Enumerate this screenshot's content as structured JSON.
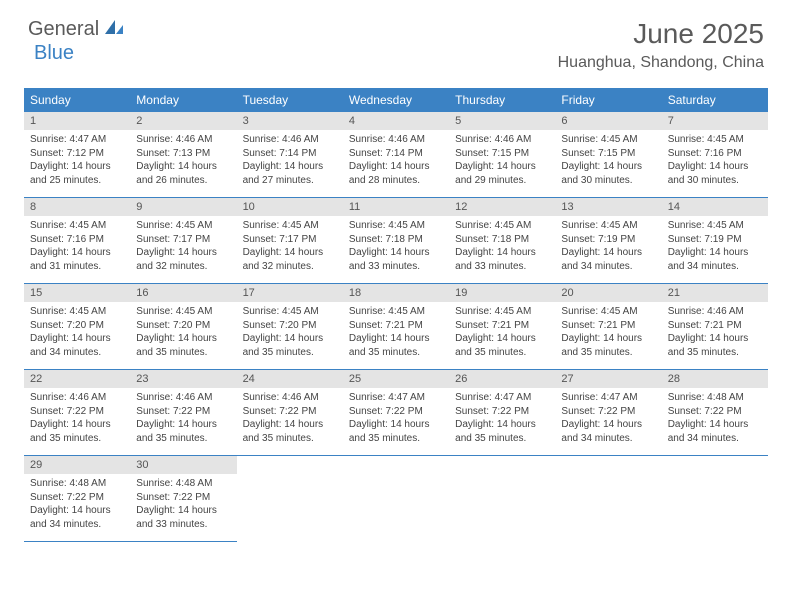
{
  "logo": {
    "text1": "General",
    "text2": "Blue"
  },
  "title": "June 2025",
  "location": "Huanghua, Shandong, China",
  "colors": {
    "brand_blue": "#3b82c4",
    "header_text": "#5a5a5a",
    "daynum_bg": "#e4e4e4",
    "body_text": "#444444",
    "background": "#ffffff"
  },
  "layout": {
    "columns": 7,
    "rows": 5,
    "start_weekday": "Sunday"
  },
  "weekdays": [
    "Sunday",
    "Monday",
    "Tuesday",
    "Wednesday",
    "Thursday",
    "Friday",
    "Saturday"
  ],
  "days": [
    {
      "n": 1,
      "sunrise": "4:47 AM",
      "sunset": "7:12 PM",
      "daylight": "14 hours and 25 minutes."
    },
    {
      "n": 2,
      "sunrise": "4:46 AM",
      "sunset": "7:13 PM",
      "daylight": "14 hours and 26 minutes."
    },
    {
      "n": 3,
      "sunrise": "4:46 AM",
      "sunset": "7:14 PM",
      "daylight": "14 hours and 27 minutes."
    },
    {
      "n": 4,
      "sunrise": "4:46 AM",
      "sunset": "7:14 PM",
      "daylight": "14 hours and 28 minutes."
    },
    {
      "n": 5,
      "sunrise": "4:46 AM",
      "sunset": "7:15 PM",
      "daylight": "14 hours and 29 minutes."
    },
    {
      "n": 6,
      "sunrise": "4:45 AM",
      "sunset": "7:15 PM",
      "daylight": "14 hours and 30 minutes."
    },
    {
      "n": 7,
      "sunrise": "4:45 AM",
      "sunset": "7:16 PM",
      "daylight": "14 hours and 30 minutes."
    },
    {
      "n": 8,
      "sunrise": "4:45 AM",
      "sunset": "7:16 PM",
      "daylight": "14 hours and 31 minutes."
    },
    {
      "n": 9,
      "sunrise": "4:45 AM",
      "sunset": "7:17 PM",
      "daylight": "14 hours and 32 minutes."
    },
    {
      "n": 10,
      "sunrise": "4:45 AM",
      "sunset": "7:17 PM",
      "daylight": "14 hours and 32 minutes."
    },
    {
      "n": 11,
      "sunrise": "4:45 AM",
      "sunset": "7:18 PM",
      "daylight": "14 hours and 33 minutes."
    },
    {
      "n": 12,
      "sunrise": "4:45 AM",
      "sunset": "7:18 PM",
      "daylight": "14 hours and 33 minutes."
    },
    {
      "n": 13,
      "sunrise": "4:45 AM",
      "sunset": "7:19 PM",
      "daylight": "14 hours and 34 minutes."
    },
    {
      "n": 14,
      "sunrise": "4:45 AM",
      "sunset": "7:19 PM",
      "daylight": "14 hours and 34 minutes."
    },
    {
      "n": 15,
      "sunrise": "4:45 AM",
      "sunset": "7:20 PM",
      "daylight": "14 hours and 34 minutes."
    },
    {
      "n": 16,
      "sunrise": "4:45 AM",
      "sunset": "7:20 PM",
      "daylight": "14 hours and 35 minutes."
    },
    {
      "n": 17,
      "sunrise": "4:45 AM",
      "sunset": "7:20 PM",
      "daylight": "14 hours and 35 minutes."
    },
    {
      "n": 18,
      "sunrise": "4:45 AM",
      "sunset": "7:21 PM",
      "daylight": "14 hours and 35 minutes."
    },
    {
      "n": 19,
      "sunrise": "4:45 AM",
      "sunset": "7:21 PM",
      "daylight": "14 hours and 35 minutes."
    },
    {
      "n": 20,
      "sunrise": "4:45 AM",
      "sunset": "7:21 PM",
      "daylight": "14 hours and 35 minutes."
    },
    {
      "n": 21,
      "sunrise": "4:46 AM",
      "sunset": "7:21 PM",
      "daylight": "14 hours and 35 minutes."
    },
    {
      "n": 22,
      "sunrise": "4:46 AM",
      "sunset": "7:22 PM",
      "daylight": "14 hours and 35 minutes."
    },
    {
      "n": 23,
      "sunrise": "4:46 AM",
      "sunset": "7:22 PM",
      "daylight": "14 hours and 35 minutes."
    },
    {
      "n": 24,
      "sunrise": "4:46 AM",
      "sunset": "7:22 PM",
      "daylight": "14 hours and 35 minutes."
    },
    {
      "n": 25,
      "sunrise": "4:47 AM",
      "sunset": "7:22 PM",
      "daylight": "14 hours and 35 minutes."
    },
    {
      "n": 26,
      "sunrise": "4:47 AM",
      "sunset": "7:22 PM",
      "daylight": "14 hours and 35 minutes."
    },
    {
      "n": 27,
      "sunrise": "4:47 AM",
      "sunset": "7:22 PM",
      "daylight": "14 hours and 34 minutes."
    },
    {
      "n": 28,
      "sunrise": "4:48 AM",
      "sunset": "7:22 PM",
      "daylight": "14 hours and 34 minutes."
    },
    {
      "n": 29,
      "sunrise": "4:48 AM",
      "sunset": "7:22 PM",
      "daylight": "14 hours and 34 minutes."
    },
    {
      "n": 30,
      "sunrise": "4:48 AM",
      "sunset": "7:22 PM",
      "daylight": "14 hours and 33 minutes."
    }
  ],
  "labels": {
    "sunrise": "Sunrise:",
    "sunset": "Sunset:",
    "daylight": "Daylight:"
  }
}
